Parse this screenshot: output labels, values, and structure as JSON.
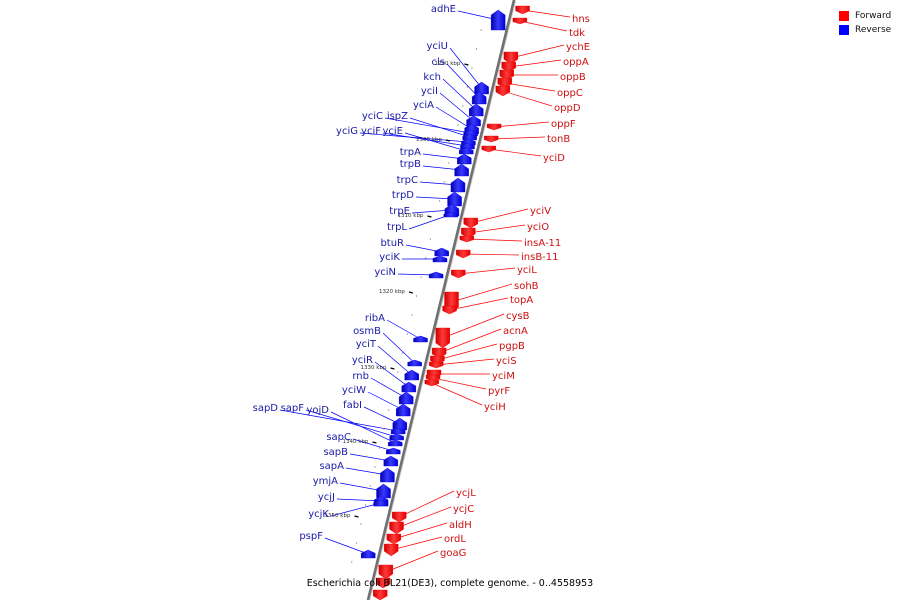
{
  "legend": {
    "forward_label": "Forward",
    "reverse_label": "Reverse",
    "forward_color": "#ff0000",
    "reverse_color": "#0000ff"
  },
  "caption": "Escherichia coli BL21(DE3), complete genome. - 0..4558953",
  "ticks": [
    "1290 kbp",
    "1300 kbp",
    "1310 kbp",
    "1320 kbp",
    "1330 kbp",
    "1340 kbp",
    "1350 kbp"
  ],
  "reverse_genes": [
    "adhE",
    "yciU",
    "cls",
    "kch",
    "yciI",
    "yciA",
    "yciC",
    "ispZ",
    "yciG",
    "yciF",
    "yciE",
    "trpA",
    "trpB",
    "trpC",
    "trpD",
    "trpE",
    "trpL",
    "btuR",
    "yciK",
    "yciN",
    "ribA",
    "osmB",
    "yciT",
    "yciR",
    "rnb",
    "yciW",
    "fabI",
    "sapD",
    "sapF",
    "yojD",
    "sapC",
    "sapB",
    "sapA",
    "ymjA",
    "ycjJ",
    "ycjK",
    "pspF"
  ],
  "forward_genes": [
    "hns",
    "tdk",
    "ychE",
    "oppA",
    "oppB",
    "oppC",
    "oppD",
    "oppF",
    "tonB",
    "yciD",
    "yciV",
    "yciO",
    "insA-11",
    "insB-11",
    "yciL",
    "sohB",
    "topA",
    "cysB",
    "acnA",
    "pgpB",
    "yciS",
    "yciM",
    "pyrF",
    "yciH",
    "ycjL",
    "ycjC",
    "aldH",
    "ordL",
    "goaG"
  ]
}
